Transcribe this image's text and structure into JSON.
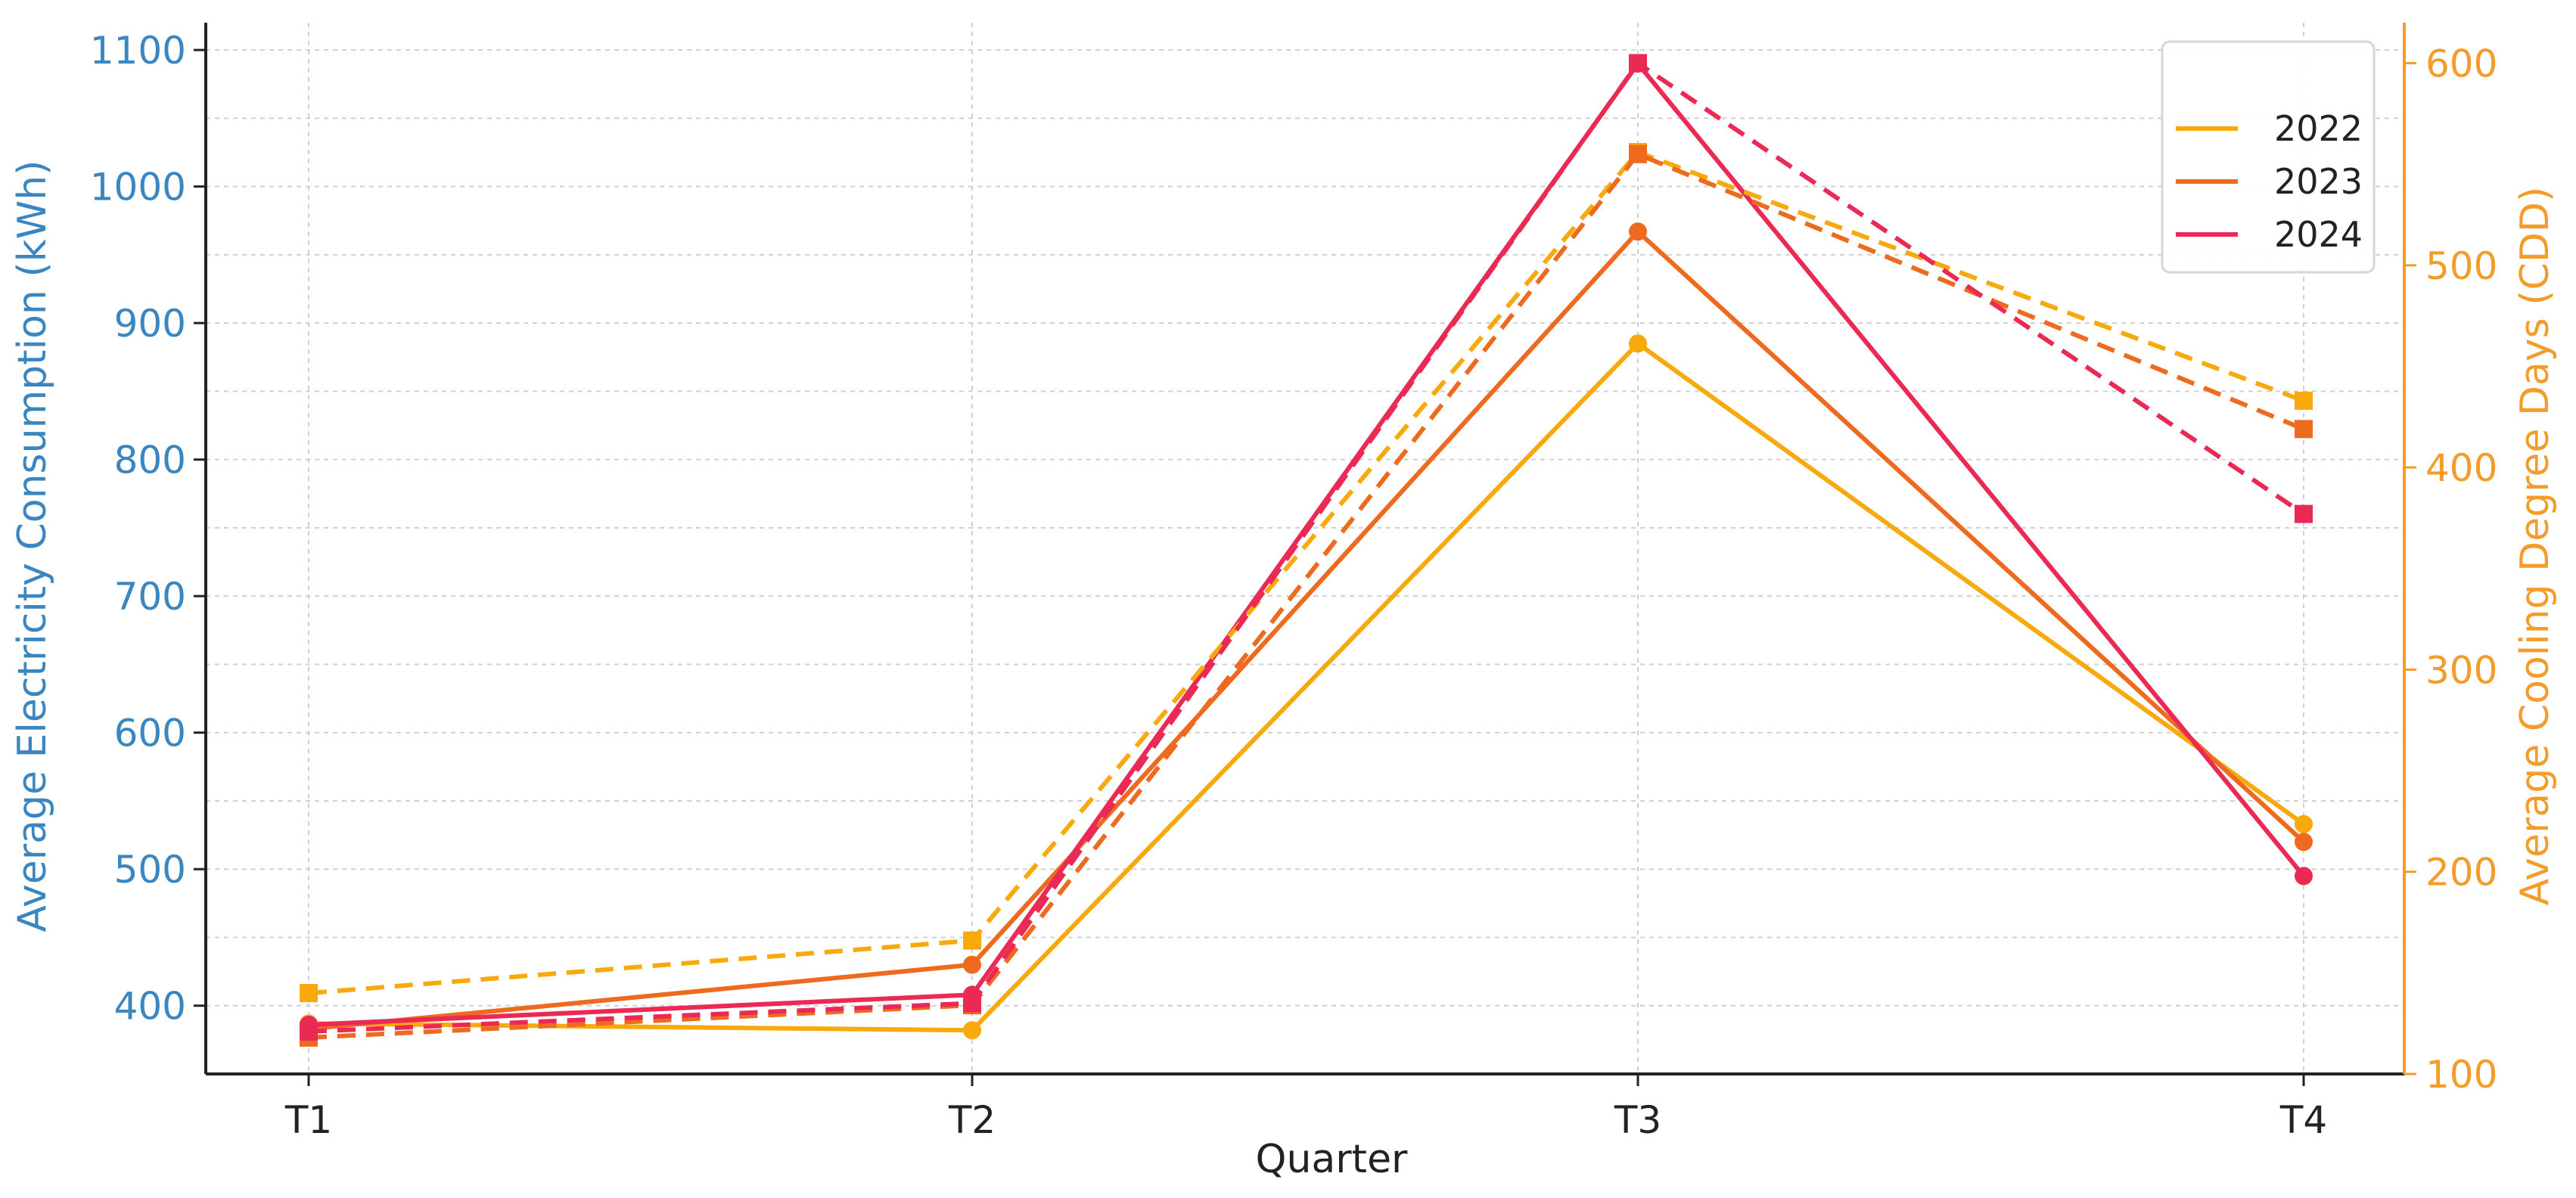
{
  "chart_data": {
    "type": "line",
    "title": "",
    "xlabel": "Quarter",
    "ylabel": "Average Electricity Consumption (kWh)",
    "y2label": "Average Cooling Degree Days (CDD)",
    "categories": [
      "T1",
      "T2",
      "T3",
      "T4"
    ],
    "ylim": [
      350,
      1120
    ],
    "y2lim": [
      100,
      620
    ],
    "yticks": [
      400,
      500,
      600,
      700,
      800,
      900,
      1000,
      1100
    ],
    "y2ticks": [
      100,
      200,
      300,
      400,
      500,
      600
    ],
    "grid": true,
    "legend_position": "top-right",
    "series": [
      {
        "name": "2022",
        "color": "#f7a90d",
        "axis": "left",
        "style": "solid",
        "marker": "circle",
        "values": [
          387,
          382,
          885,
          533
        ]
      },
      {
        "name": "2023",
        "color": "#ee6a1e",
        "axis": "left",
        "style": "solid",
        "marker": "circle",
        "values": [
          383,
          430,
          967,
          520
        ]
      },
      {
        "name": "2024",
        "color": "#ea2a55",
        "axis": "left",
        "style": "solid",
        "marker": "circle",
        "values": [
          386,
          408,
          1090,
          495
        ]
      },
      {
        "name": "2022",
        "color": "#f7a90d",
        "axis": "right",
        "style": "dashed",
        "marker": "square",
        "values": [
          140,
          166,
          556,
          433
        ]
      },
      {
        "name": "2023",
        "color": "#ee6a1e",
        "axis": "right",
        "style": "dashed",
        "marker": "square",
        "values": [
          118,
          134,
          555,
          419
        ]
      },
      {
        "name": "2024",
        "color": "#ea2a55",
        "axis": "right",
        "style": "dashed",
        "marker": "square",
        "values": [
          121,
          135,
          600,
          377
        ]
      }
    ],
    "legend": [
      "2022",
      "2023",
      "2024"
    ]
  }
}
